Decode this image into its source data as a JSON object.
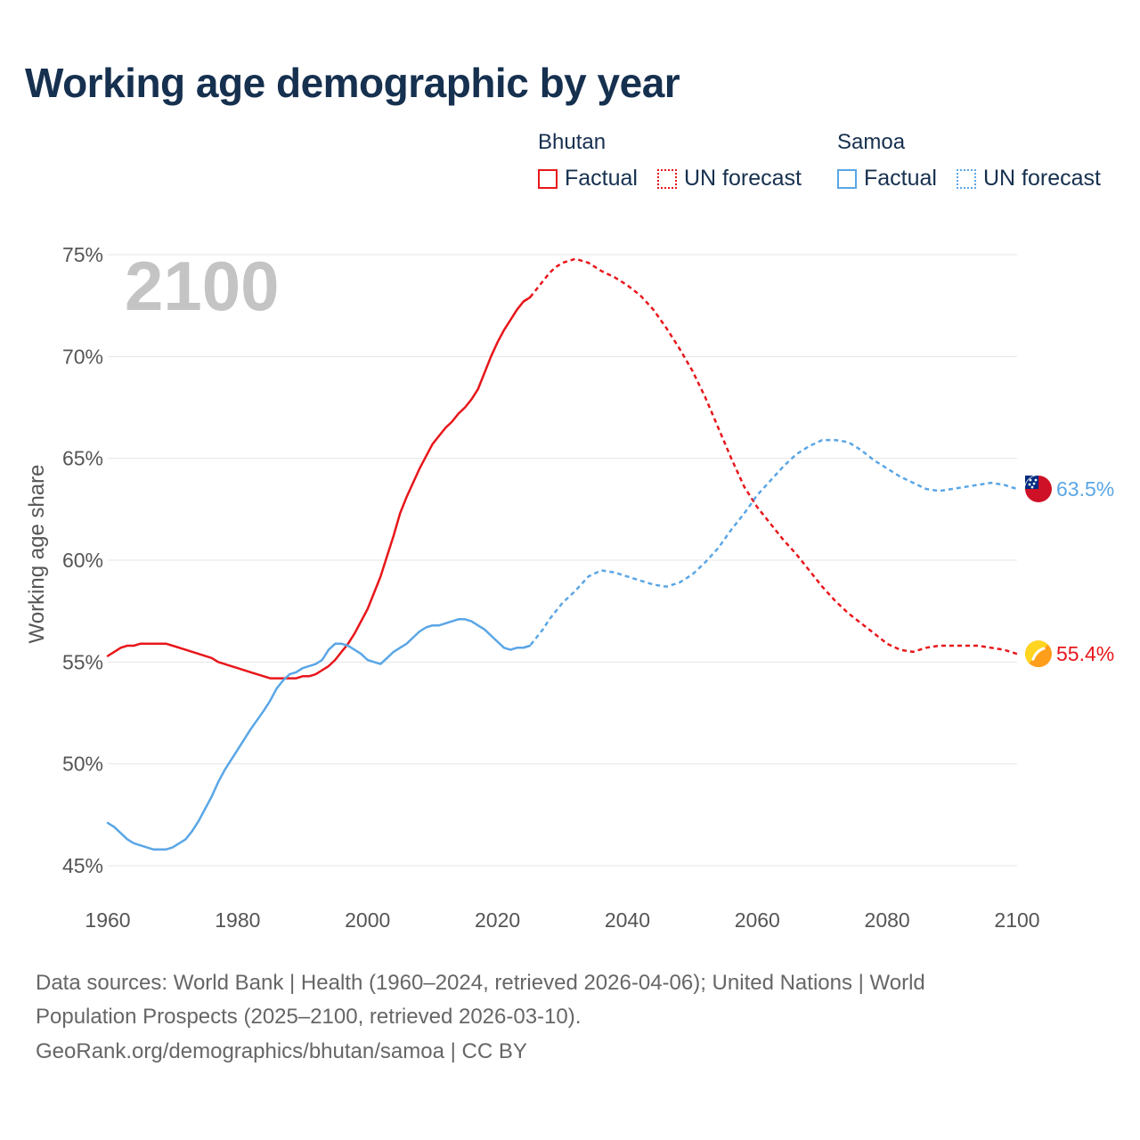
{
  "title": "Working age demographic by year",
  "legend": {
    "groups": [
      {
        "name": "Bhutan",
        "factual_label": "Factual",
        "forecast_label": "UN forecast",
        "color": "#e8161a"
      },
      {
        "name": "Samoa",
        "factual_label": "Factual",
        "forecast_label": "UN forecast",
        "color": "#5aa6e6"
      }
    ]
  },
  "year_display": "2100",
  "footer": {
    "line1": "Data sources: World Bank | Health (1960–2024, retrieved 2026-04-06); United Nations | World",
    "line2": "Population Prospects (2025–2100, retrieved 2026-03-10).",
    "line3": "GeoRank.org/demographics/bhutan/samoa | CC BY"
  },
  "chart_data": {
    "type": "line",
    "title": "Working age demographic by year",
    "xlabel": "",
    "ylabel": "Working age share",
    "xlim": [
      1960,
      2100
    ],
    "ylim": [
      45,
      75
    ],
    "x_ticks": [
      1960,
      1980,
      2000,
      2020,
      2040,
      2060,
      2080,
      2100
    ],
    "y_ticks": [
      45,
      50,
      55,
      60,
      65,
      70,
      75
    ],
    "y_tick_labels": [
      "45%",
      "50%",
      "55%",
      "60%",
      "65%",
      "70%",
      "75%"
    ],
    "grid": true,
    "forecast_start": 2025,
    "series": [
      {
        "name": "Bhutan",
        "color": "#e8161a",
        "end_label": "55.4%",
        "flag_icon": "bhutan-flag-icon",
        "x": [
          1960,
          1961,
          1962,
          1963,
          1964,
          1965,
          1966,
          1968,
          1969,
          1970,
          1972,
          1974,
          1976,
          1977,
          1978,
          1980,
          1982,
          1984,
          1985,
          1986,
          1988,
          1989,
          1990,
          1991,
          1992,
          1993,
          1994,
          1995,
          1996,
          1997,
          1998,
          1999,
          2000,
          2001,
          2002,
          2003,
          2004,
          2005,
          2006,
          2007,
          2008,
          2009,
          2010,
          2011,
          2012,
          2013,
          2014,
          2015,
          2016,
          2017,
          2018,
          2019,
          2020,
          2021,
          2022,
          2023,
          2024,
          2025,
          2026,
          2027,
          2028,
          2029,
          2030,
          2032,
          2034,
          2036,
          2038,
          2040,
          2042,
          2044,
          2046,
          2048,
          2050,
          2052,
          2054,
          2056,
          2058,
          2060,
          2062,
          2064,
          2066,
          2068,
          2070,
          2072,
          2074,
          2076,
          2078,
          2080,
          2082,
          2084,
          2086,
          2088,
          2090,
          2092,
          2094,
          2096,
          2098,
          2100
        ],
        "y": [
          55.3,
          55.5,
          55.7,
          55.8,
          55.8,
          55.9,
          55.9,
          55.9,
          55.9,
          55.8,
          55.6,
          55.4,
          55.2,
          55.0,
          54.9,
          54.7,
          54.5,
          54.3,
          54.2,
          54.2,
          54.2,
          54.2,
          54.3,
          54.3,
          54.4,
          54.6,
          54.8,
          55.1,
          55.5,
          55.9,
          56.4,
          57.0,
          57.6,
          58.4,
          59.2,
          60.2,
          61.2,
          62.3,
          63.1,
          63.8,
          64.5,
          65.1,
          65.7,
          66.1,
          66.5,
          66.8,
          67.2,
          67.5,
          67.9,
          68.4,
          69.2,
          70.0,
          70.7,
          71.3,
          71.8,
          72.3,
          72.7,
          72.9,
          73.3,
          73.7,
          74.1,
          74.4,
          74.6,
          74.8,
          74.6,
          74.2,
          73.9,
          73.5,
          73.0,
          72.3,
          71.4,
          70.4,
          69.3,
          68.0,
          66.5,
          65.0,
          63.6,
          62.6,
          61.8,
          61.0,
          60.3,
          59.5,
          58.7,
          58.0,
          57.4,
          56.9,
          56.4,
          55.9,
          55.6,
          55.5,
          55.7,
          55.8,
          55.8,
          55.8,
          55.8,
          55.7,
          55.6,
          55.4
        ]
      },
      {
        "name": "Samoa",
        "color": "#5aa6e6",
        "end_label": "63.5%",
        "flag_icon": "samoa-flag-icon",
        "x": [
          1960,
          1961,
          1962,
          1963,
          1964,
          1966,
          1967,
          1968,
          1969,
          1970,
          1972,
          1973,
          1974,
          1975,
          1976,
          1977,
          1978,
          1980,
          1982,
          1984,
          1985,
          1986,
          1987,
          1988,
          1989,
          1990,
          1991,
          1992,
          1993,
          1994,
          1995,
          1996,
          1997,
          1998,
          1999,
          2000,
          2001,
          2002,
          2003,
          2004,
          2005,
          2006,
          2007,
          2008,
          2009,
          2010,
          2011,
          2012,
          2013,
          2014,
          2015,
          2016,
          2017,
          2018,
          2019,
          2020,
          2021,
          2022,
          2023,
          2024,
          2025,
          2026,
          2027,
          2028,
          2030,
          2032,
          2034,
          2036,
          2038,
          2040,
          2042,
          2044,
          2046,
          2048,
          2050,
          2052,
          2054,
          2056,
          2058,
          2060,
          2062,
          2064,
          2066,
          2068,
          2070,
          2072,
          2074,
          2076,
          2078,
          2080,
          2082,
          2084,
          2086,
          2088,
          2090,
          2092,
          2094,
          2096,
          2098,
          2100
        ],
        "y": [
          47.1,
          46.9,
          46.6,
          46.3,
          46.1,
          45.9,
          45.8,
          45.8,
          45.8,
          45.9,
          46.3,
          46.7,
          47.2,
          47.8,
          48.4,
          49.1,
          49.7,
          50.7,
          51.7,
          52.6,
          53.1,
          53.7,
          54.1,
          54.4,
          54.5,
          54.7,
          54.8,
          54.9,
          55.1,
          55.6,
          55.9,
          55.9,
          55.8,
          55.6,
          55.4,
          55.1,
          55.0,
          54.9,
          55.2,
          55.5,
          55.7,
          55.9,
          56.2,
          56.5,
          56.7,
          56.8,
          56.8,
          56.9,
          57.0,
          57.1,
          57.1,
          57.0,
          56.8,
          56.6,
          56.3,
          56.0,
          55.7,
          55.6,
          55.7,
          55.7,
          55.8,
          56.2,
          56.6,
          57.1,
          57.9,
          58.5,
          59.2,
          59.5,
          59.4,
          59.2,
          59.0,
          58.8,
          58.7,
          58.9,
          59.3,
          59.9,
          60.6,
          61.5,
          62.3,
          63.2,
          63.9,
          64.6,
          65.2,
          65.6,
          65.9,
          65.9,
          65.8,
          65.4,
          64.9,
          64.5,
          64.1,
          63.8,
          63.5,
          63.4,
          63.5,
          63.6,
          63.7,
          63.8,
          63.7,
          63.5
        ]
      }
    ]
  }
}
